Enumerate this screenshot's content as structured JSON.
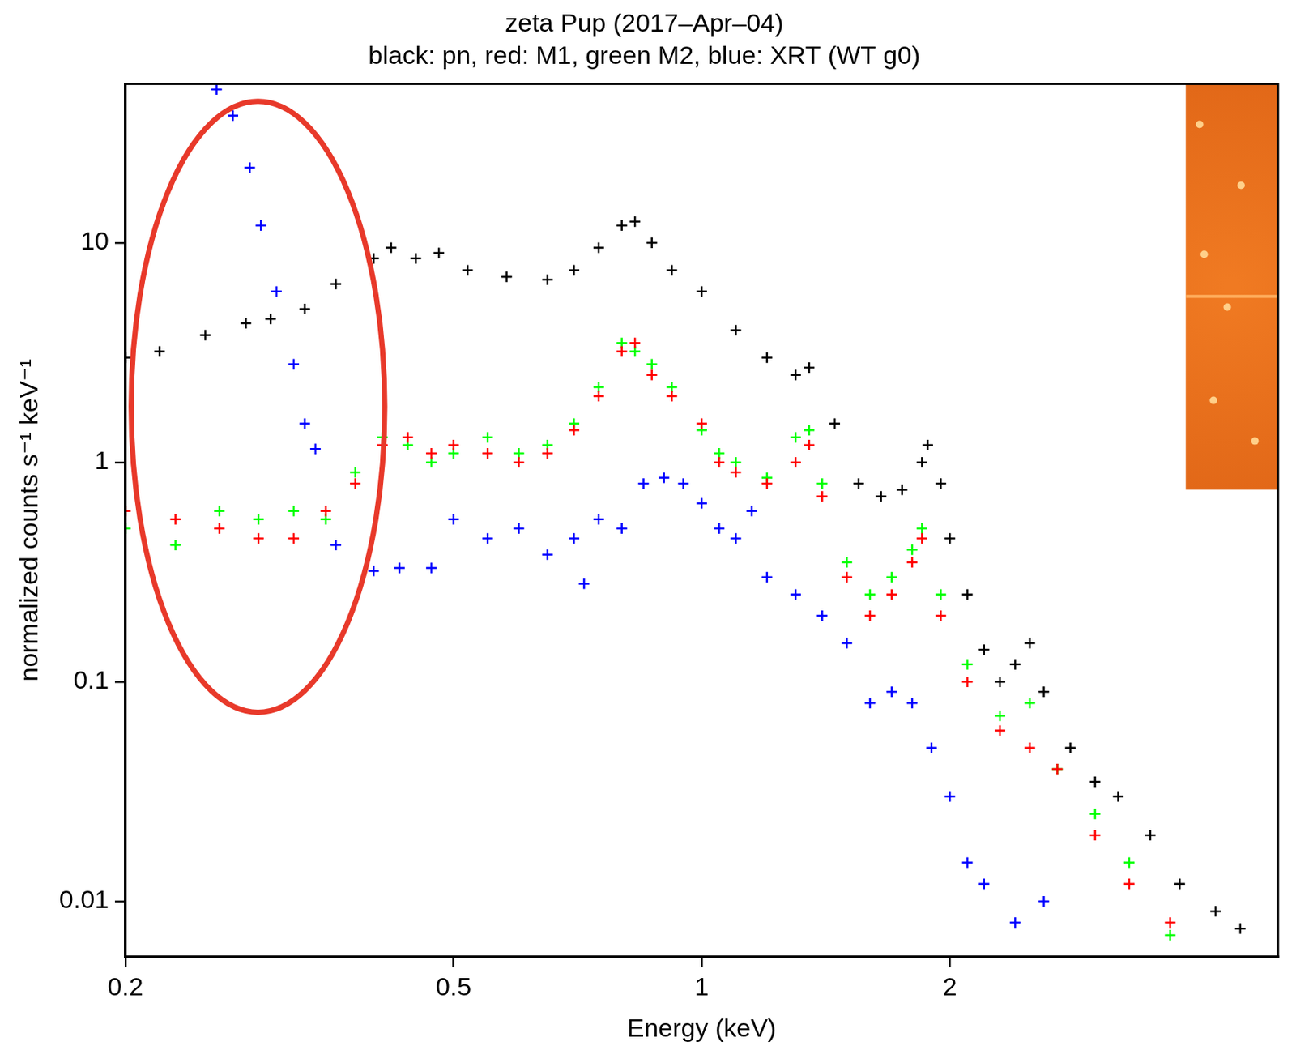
{
  "chart_data": {
    "type": "scatter",
    "title": "zeta Pup (2017–Apr–04)",
    "subtitle": "black: pn, red: M1, green M2, blue: XRT (WT g0)",
    "x_label": "Energy (keV)",
    "y_label": "normalized counts s⁻¹ keV⁻¹",
    "log": true,
    "grid": false,
    "marker": "cross",
    "xlim": [
      0.2,
      5
    ],
    "ylim": [
      0.0056,
      53
    ],
    "xticks": [
      0.2,
      0.5,
      1,
      2
    ],
    "yticks": [
      0.01,
      0.1,
      1,
      10
    ],
    "series": [
      {
        "name": "pn",
        "color": "#000000",
        "x": [
          0.2,
          0.22,
          0.25,
          0.28,
          0.3,
          0.33,
          0.36,
          0.4,
          0.42,
          0.45,
          0.48,
          0.52,
          0.58,
          0.65,
          0.7,
          0.75,
          0.8,
          0.83,
          0.87,
          0.92,
          1.0,
          1.1,
          1.2,
          1.3,
          1.35,
          1.45,
          1.55,
          1.65,
          1.75,
          1.85,
          1.88,
          1.95,
          2.0,
          2.1,
          2.2,
          2.3,
          2.4,
          2.5,
          2.6,
          2.8,
          3.0,
          3.2,
          3.5,
          3.8,
          4.2,
          4.5
        ],
        "values": [
          3,
          3.2,
          3.8,
          4.3,
          4.5,
          5,
          6.5,
          8.5,
          9.5,
          8.5,
          9,
          7.5,
          7,
          6.8,
          7.5,
          9.5,
          12,
          12.5,
          10,
          7.5,
          6,
          4,
          3,
          2.5,
          2.7,
          1.5,
          0.8,
          0.7,
          0.75,
          1.0,
          1.2,
          0.8,
          0.45,
          0.25,
          0.14,
          0.1,
          0.12,
          0.15,
          0.09,
          0.05,
          0.035,
          0.03,
          0.02,
          0.012,
          0.009,
          0.0075
        ]
      },
      {
        "name": "M1",
        "color": "#ff0000",
        "x": [
          0.2,
          0.23,
          0.26,
          0.29,
          0.32,
          0.35,
          0.38,
          0.41,
          0.44,
          0.47,
          0.5,
          0.55,
          0.6,
          0.65,
          0.7,
          0.75,
          0.8,
          0.83,
          0.87,
          0.92,
          1.0,
          1.05,
          1.1,
          1.2,
          1.3,
          1.35,
          1.4,
          1.5,
          1.6,
          1.7,
          1.8,
          1.85,
          1.95,
          2.1,
          2.3,
          2.5,
          2.7,
          3.0,
          3.3,
          3.7
        ],
        "values": [
          0.6,
          0.55,
          0.5,
          0.45,
          0.45,
          0.6,
          0.8,
          1.2,
          1.3,
          1.1,
          1.2,
          1.1,
          1.0,
          1.1,
          1.4,
          2.0,
          3.2,
          3.5,
          2.5,
          2.0,
          1.5,
          1.0,
          0.9,
          0.8,
          1.0,
          1.2,
          0.7,
          0.3,
          0.2,
          0.25,
          0.35,
          0.45,
          0.2,
          0.1,
          0.06,
          0.05,
          0.04,
          0.02,
          0.012,
          0.008
        ]
      },
      {
        "name": "M2",
        "color": "#00ff00",
        "x": [
          0.2,
          0.23,
          0.26,
          0.29,
          0.32,
          0.35,
          0.38,
          0.41,
          0.44,
          0.47,
          0.5,
          0.55,
          0.6,
          0.65,
          0.7,
          0.75,
          0.8,
          0.83,
          0.87,
          0.92,
          1.0,
          1.05,
          1.1,
          1.2,
          1.3,
          1.35,
          1.4,
          1.5,
          1.6,
          1.7,
          1.8,
          1.85,
          1.95,
          2.1,
          2.3,
          2.5,
          2.7,
          3.0,
          3.3,
          3.7
        ],
        "values": [
          0.5,
          0.42,
          0.6,
          0.55,
          0.6,
          0.55,
          0.9,
          1.3,
          1.2,
          1.0,
          1.1,
          1.3,
          1.1,
          1.2,
          1.5,
          2.2,
          3.5,
          3.2,
          2.8,
          2.2,
          1.4,
          1.1,
          1.0,
          0.85,
          1.3,
          1.4,
          0.8,
          0.35,
          0.25,
          0.3,
          0.4,
          0.5,
          0.25,
          0.12,
          0.07,
          0.08,
          0.04,
          0.025,
          0.015,
          0.007
        ]
      },
      {
        "name": "XRT",
        "color": "#0000ff",
        "x": [
          0.258,
          0.27,
          0.283,
          0.292,
          0.305,
          0.32,
          0.33,
          0.34,
          0.36,
          0.4,
          0.43,
          0.47,
          0.5,
          0.55,
          0.6,
          0.65,
          0.7,
          0.72,
          0.75,
          0.8,
          0.85,
          0.9,
          0.95,
          1.0,
          1.05,
          1.1,
          1.15,
          1.2,
          1.3,
          1.4,
          1.5,
          1.6,
          1.7,
          1.8,
          1.9,
          2.0,
          2.1,
          2.2,
          2.4,
          2.6
        ],
        "values": [
          50,
          38,
          22,
          12,
          6,
          2.8,
          1.5,
          1.15,
          0.42,
          0.32,
          0.33,
          0.33,
          0.55,
          0.45,
          0.5,
          0.38,
          0.45,
          0.28,
          0.55,
          0.5,
          0.8,
          0.85,
          0.8,
          0.65,
          0.5,
          0.45,
          0.6,
          0.3,
          0.25,
          0.2,
          0.15,
          0.08,
          0.09,
          0.08,
          0.05,
          0.03,
          0.015,
          0.012,
          0.008,
          0.01
        ]
      }
    ]
  }
}
